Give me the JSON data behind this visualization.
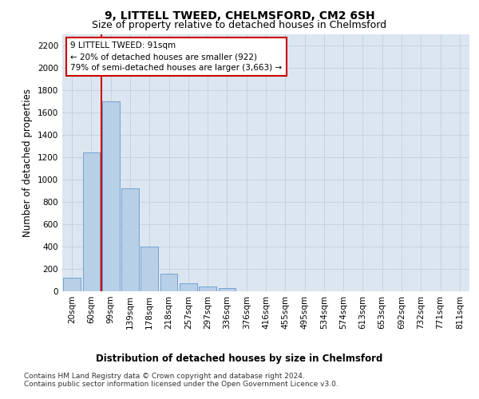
{
  "title": "9, LITTELL TWEED, CHELMSFORD, CM2 6SH",
  "subtitle": "Size of property relative to detached houses in Chelmsford",
  "xlabel": "Distribution of detached houses by size in Chelmsford",
  "ylabel": "Number of detached properties",
  "categories": [
    "20sqm",
    "60sqm",
    "99sqm",
    "139sqm",
    "178sqm",
    "218sqm",
    "257sqm",
    "297sqm",
    "336sqm",
    "376sqm",
    "416sqm",
    "455sqm",
    "495sqm",
    "534sqm",
    "574sqm",
    "613sqm",
    "653sqm",
    "692sqm",
    "732sqm",
    "771sqm",
    "811sqm"
  ],
  "values": [
    120,
    1240,
    1700,
    920,
    400,
    155,
    70,
    40,
    25,
    0,
    0,
    0,
    0,
    0,
    0,
    0,
    0,
    0,
    0,
    0,
    0
  ],
  "bar_color": "#b8cfe8",
  "bar_edge_color": "#6699cc",
  "property_line_color": "#cc0000",
  "annotation_text": "9 LITTELL TWEED: 91sqm\n← 20% of detached houses are smaller (922)\n79% of semi-detached houses are larger (3,663) →",
  "annotation_box_color": "#ffffff",
  "annotation_box_edge_color": "#cc0000",
  "ylim": [
    0,
    2300
  ],
  "yticks": [
    0,
    200,
    400,
    600,
    800,
    1000,
    1200,
    1400,
    1600,
    1800,
    2000,
    2200
  ],
  "footer_line1": "Contains HM Land Registry data © Crown copyright and database right 2024.",
  "footer_line2": "Contains public sector information licensed under the Open Government Licence v3.0.",
  "bg_color": "#ffffff",
  "plot_bg_color": "#dce6f0",
  "grid_color": "#c0cfe0",
  "title_fontsize": 10,
  "subtitle_fontsize": 9,
  "axis_label_fontsize": 8.5,
  "tick_fontsize": 7.5,
  "annotation_fontsize": 7.5,
  "footer_fontsize": 6.5
}
